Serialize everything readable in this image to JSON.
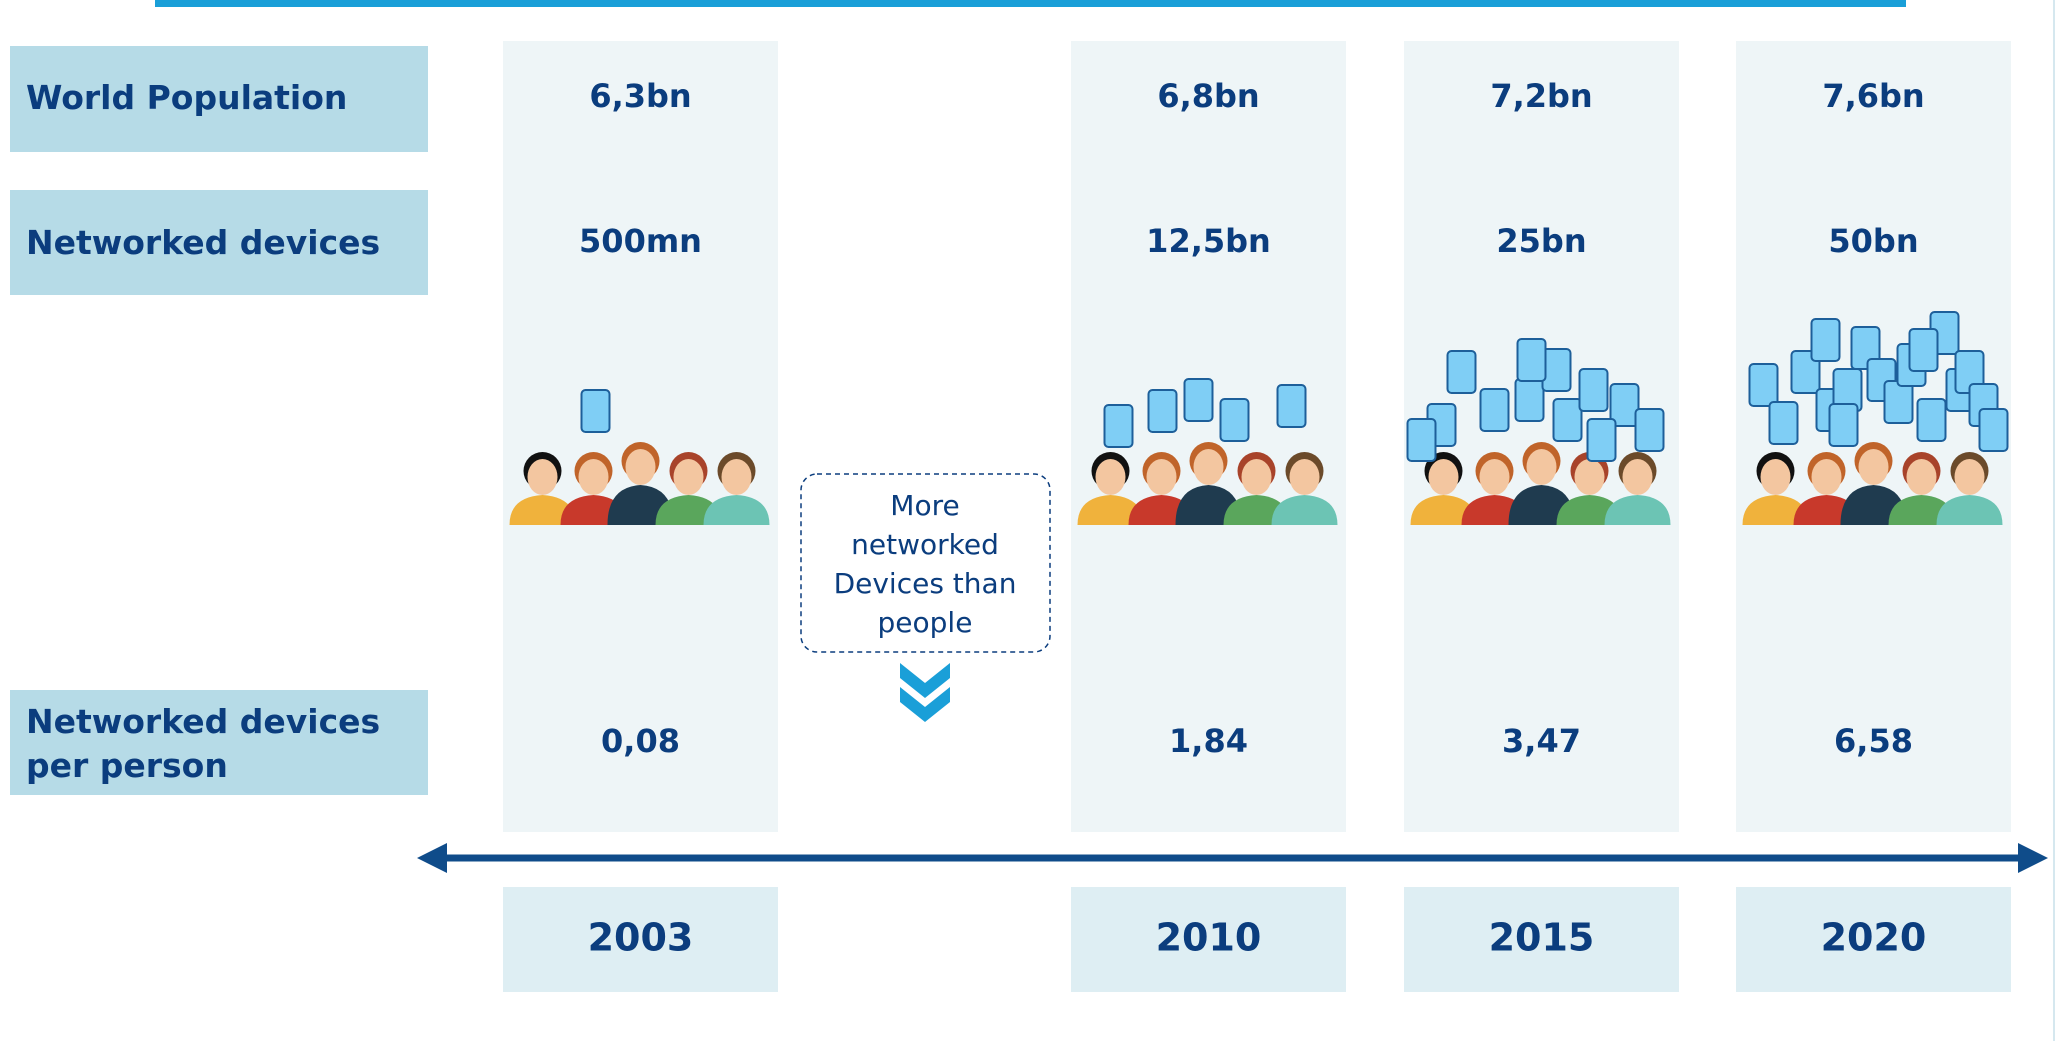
{
  "rows": [
    {
      "label": "World Population",
      "values": [
        "6,3bn",
        "6,8bn",
        "7,2bn",
        "7,6bn"
      ]
    },
    {
      "label": "Networked devices",
      "values": [
        "500mn",
        "12,5bn",
        "25bn",
        "50bn"
      ]
    },
    {
      "label": "Networked devices per person",
      "values": [
        "0,08",
        "1,84",
        "3,47",
        "6,58"
      ]
    }
  ],
  "years": [
    "2003",
    "2010",
    "2015",
    "2020"
  ],
  "callout": "More networked Devices than people"
}
